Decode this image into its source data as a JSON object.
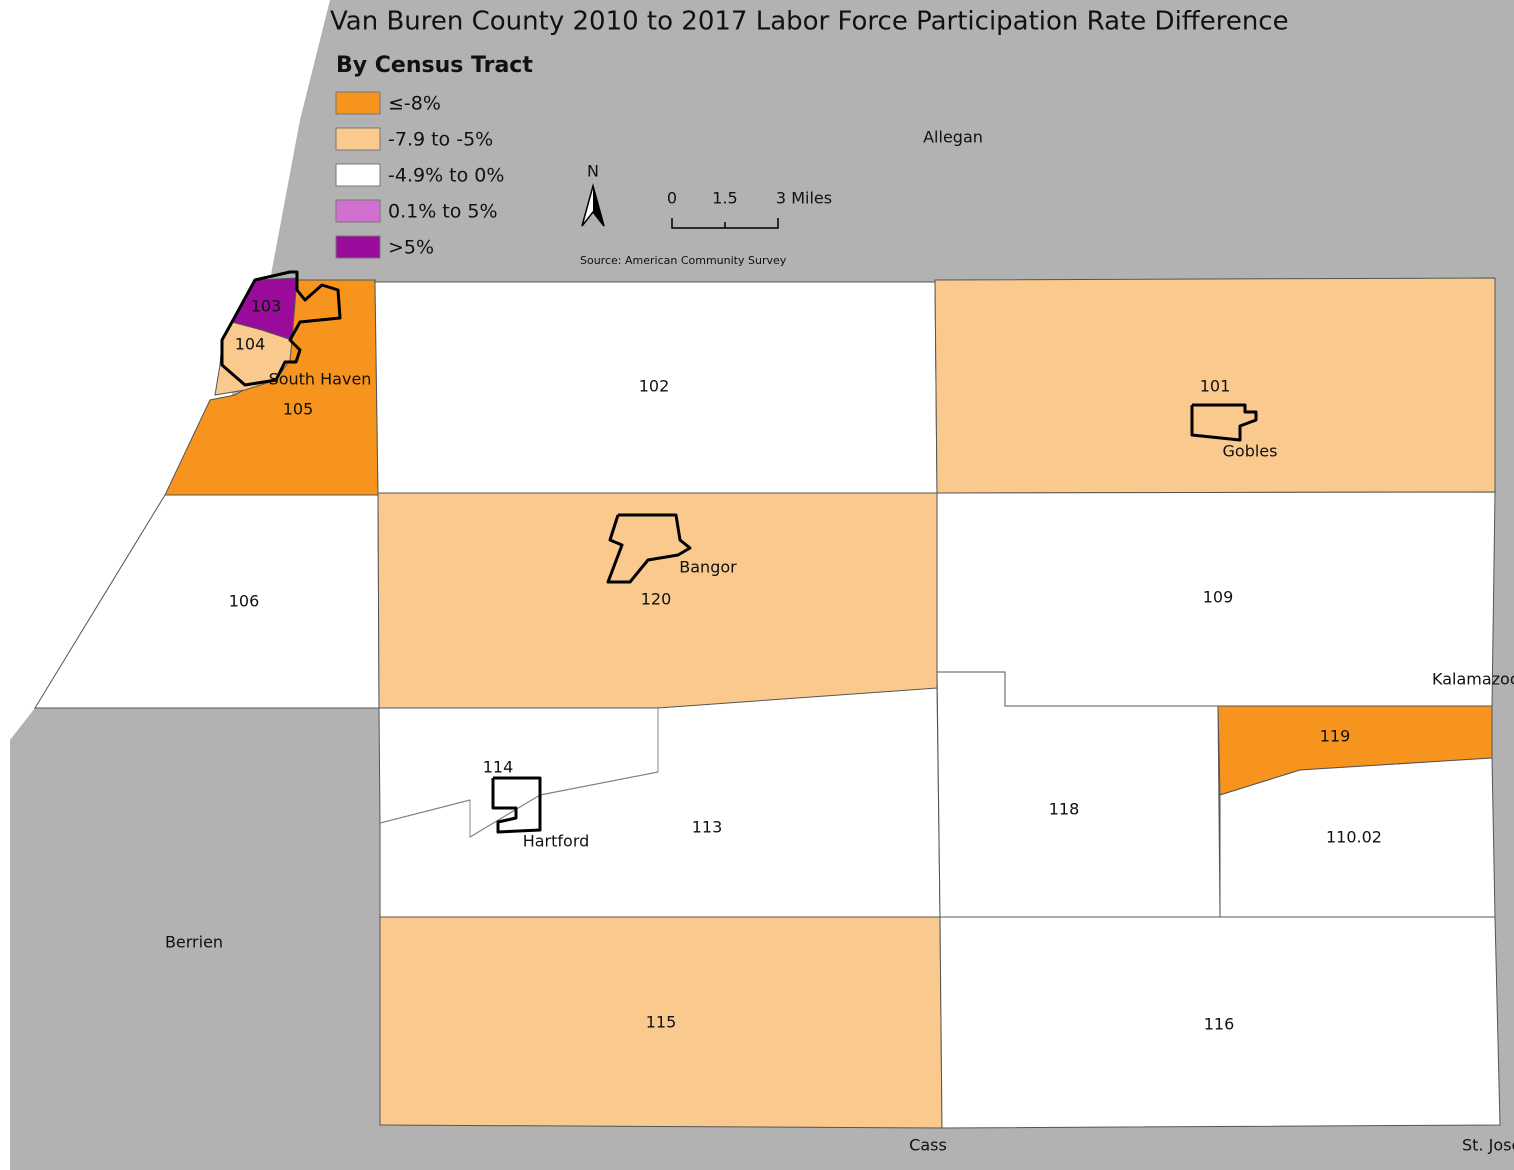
{
  "map": {
    "title": "Van Buren County 2010 to 2017 Labor Force Participation Rate Difference",
    "subtitle": "By Census Tract",
    "legend": [
      {
        "label": "≤-8%",
        "color": "#f7941d"
      },
      {
        "label": "-7.9 to -5%",
        "color": "#f9c98e"
      },
      {
        "label": "-4.9% to 0%",
        "color": "#ffffff"
      },
      {
        "label": "0.1% to 5%",
        "color": "#d270d0"
      },
      {
        "label": ">5%",
        "color": "#9b0b9b"
      }
    ],
    "tracts": [
      {
        "label": "105",
        "color": "#f7941d"
      },
      {
        "label": "104",
        "color": "#f9c98e"
      },
      {
        "label": "103",
        "color": "#9b0b9b"
      },
      {
        "label": "102",
        "color": "#ffffff"
      },
      {
        "label": "101",
        "color": "#f9c98e"
      },
      {
        "label": "106",
        "color": "#ffffff"
      },
      {
        "label": "120",
        "color": "#f9c98e"
      },
      {
        "label": "109",
        "color": "#ffffff"
      },
      {
        "label": "113",
        "color": "#ffffff"
      },
      {
        "label": "114",
        "color": "#ffffff"
      },
      {
        "label": "118",
        "color": "#ffffff"
      },
      {
        "label": "119",
        "color": "#f7941d"
      },
      {
        "label": "110.02",
        "color": "#ffffff"
      },
      {
        "label": "115",
        "color": "#f9c98e"
      },
      {
        "label": "116",
        "color": "#ffffff"
      }
    ],
    "places": [
      "South Haven",
      "Gobles",
      "Bangor",
      "Hartford"
    ],
    "counties": [
      "Allegan",
      "Kalamazoo",
      "Berrien",
      "Cass",
      "St. Joseph"
    ],
    "north": "N",
    "scale": [
      "0",
      "1.5",
      "3 Miles"
    ],
    "source": "Source: American Community Survey"
  }
}
